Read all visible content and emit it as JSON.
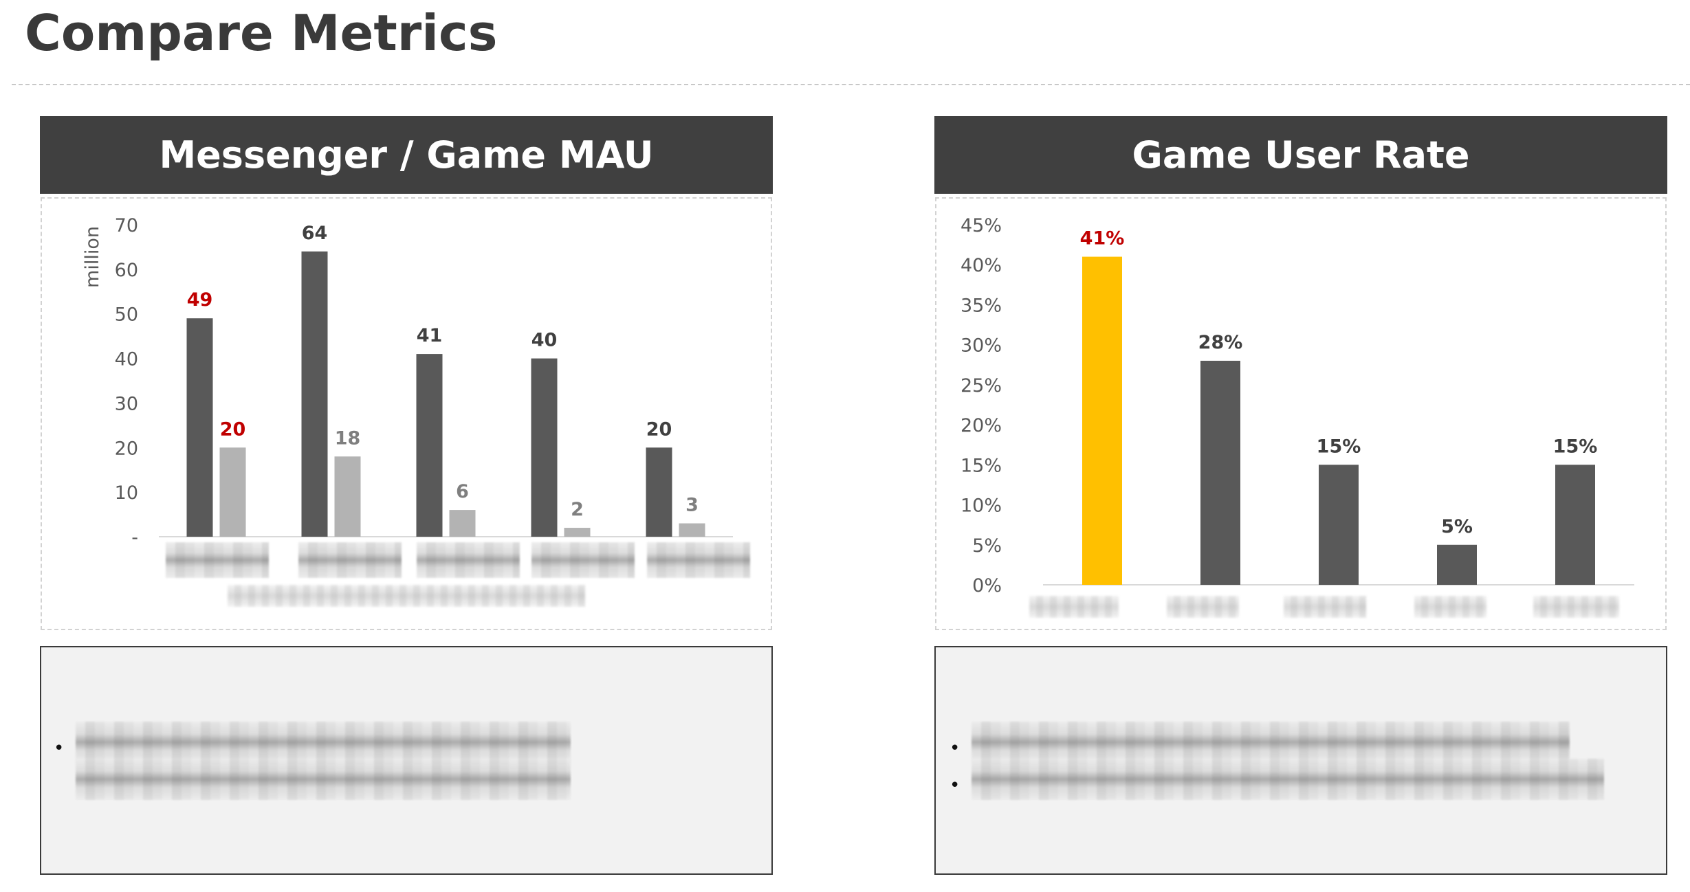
{
  "page": {
    "title": "Compare Metrics"
  },
  "colors": {
    "header_bg": "#404040",
    "dark_bar": "#595959",
    "light_bar": "#b3b3b3",
    "highlight_bar": "#ffc000",
    "highlight_label": "#c00000",
    "dark_label": "#404040",
    "light_label": "#7f7f7f"
  },
  "panels": {
    "left": {
      "header": "Messenger / Game MAU"
    },
    "right": {
      "header": "Game User Rate"
    }
  },
  "chart_data": [
    {
      "type": "bar",
      "title": "Messenger / Game MAU",
      "ylabel": "million",
      "xlabel": "",
      "ylim": [
        0,
        70
      ],
      "yticks": [
        "-",
        "10",
        "20",
        "30",
        "40",
        "50",
        "60",
        "70"
      ],
      "categories": [
        "",
        "",
        "",
        "",
        ""
      ],
      "series": [
        {
          "values": [
            49,
            64,
            41,
            40,
            20
          ]
        },
        {
          "values": [
            20,
            18,
            6,
            2,
            3
          ]
        }
      ],
      "highlight_category_index": 0,
      "grid": false,
      "legend": "none"
    },
    {
      "type": "bar",
      "title": "Game User Rate",
      "ylabel": "",
      "xlabel": "",
      "ylim": [
        0,
        45
      ],
      "yticks": [
        "0%",
        "5%",
        "10%",
        "15%",
        "20%",
        "25%",
        "30%",
        "35%",
        "40%",
        "45%"
      ],
      "categories": [
        "",
        "",
        "",
        "",
        ""
      ],
      "series": [
        {
          "values": [
            41,
            28,
            15,
            5,
            15
          ],
          "labels": [
            "41%",
            "28%",
            "15%",
            "5%",
            "15%"
          ]
        }
      ],
      "highlight_category_index": 0,
      "grid": false,
      "legend": "none"
    }
  ]
}
